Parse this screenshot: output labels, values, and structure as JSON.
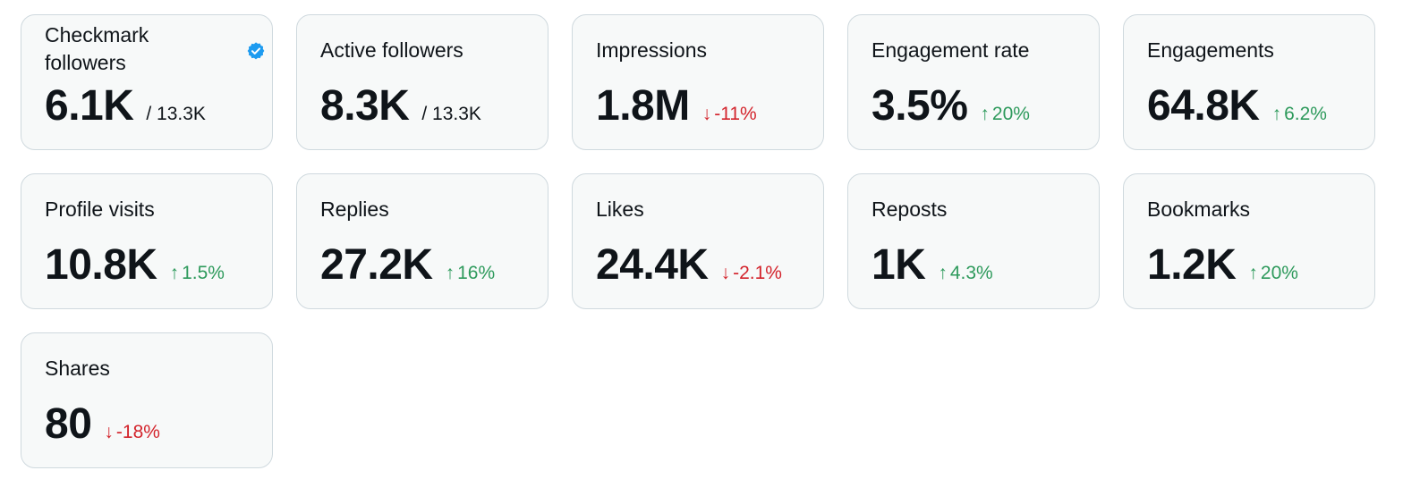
{
  "colors": {
    "card_bg": "#f7f9f9",
    "card_border": "#cfd9de",
    "text": "#0f1419",
    "up": "#2e9a5c",
    "down": "#d3242c",
    "verified": "#1d9bf0"
  },
  "cards": [
    {
      "title": "Checkmark followers",
      "value": "6.1K",
      "total": "/ 13.3K",
      "icon": "verified-badge-icon"
    },
    {
      "title": "Active followers",
      "value": "8.3K",
      "total": "/ 13.3K"
    },
    {
      "title": "Impressions",
      "value": "1.8M",
      "change": "-11%",
      "direction": "down"
    },
    {
      "title": "Engagement rate",
      "value": "3.5%",
      "change": "20%",
      "direction": "up"
    },
    {
      "title": "Engagements",
      "value": "64.8K",
      "change": "6.2%",
      "direction": "up"
    },
    {
      "title": "Profile visits",
      "value": "10.8K",
      "change": "1.5%",
      "direction": "up"
    },
    {
      "title": "Replies",
      "value": "27.2K",
      "change": "16%",
      "direction": "up"
    },
    {
      "title": "Likes",
      "value": "24.4K",
      "change": "-2.1%",
      "direction": "down"
    },
    {
      "title": "Reposts",
      "value": "1K",
      "change": "4.3%",
      "direction": "up"
    },
    {
      "title": "Bookmarks",
      "value": "1.2K",
      "change": "20%",
      "direction": "up"
    },
    {
      "title": "Shares",
      "value": "80",
      "change": "-18%",
      "direction": "down"
    }
  ]
}
